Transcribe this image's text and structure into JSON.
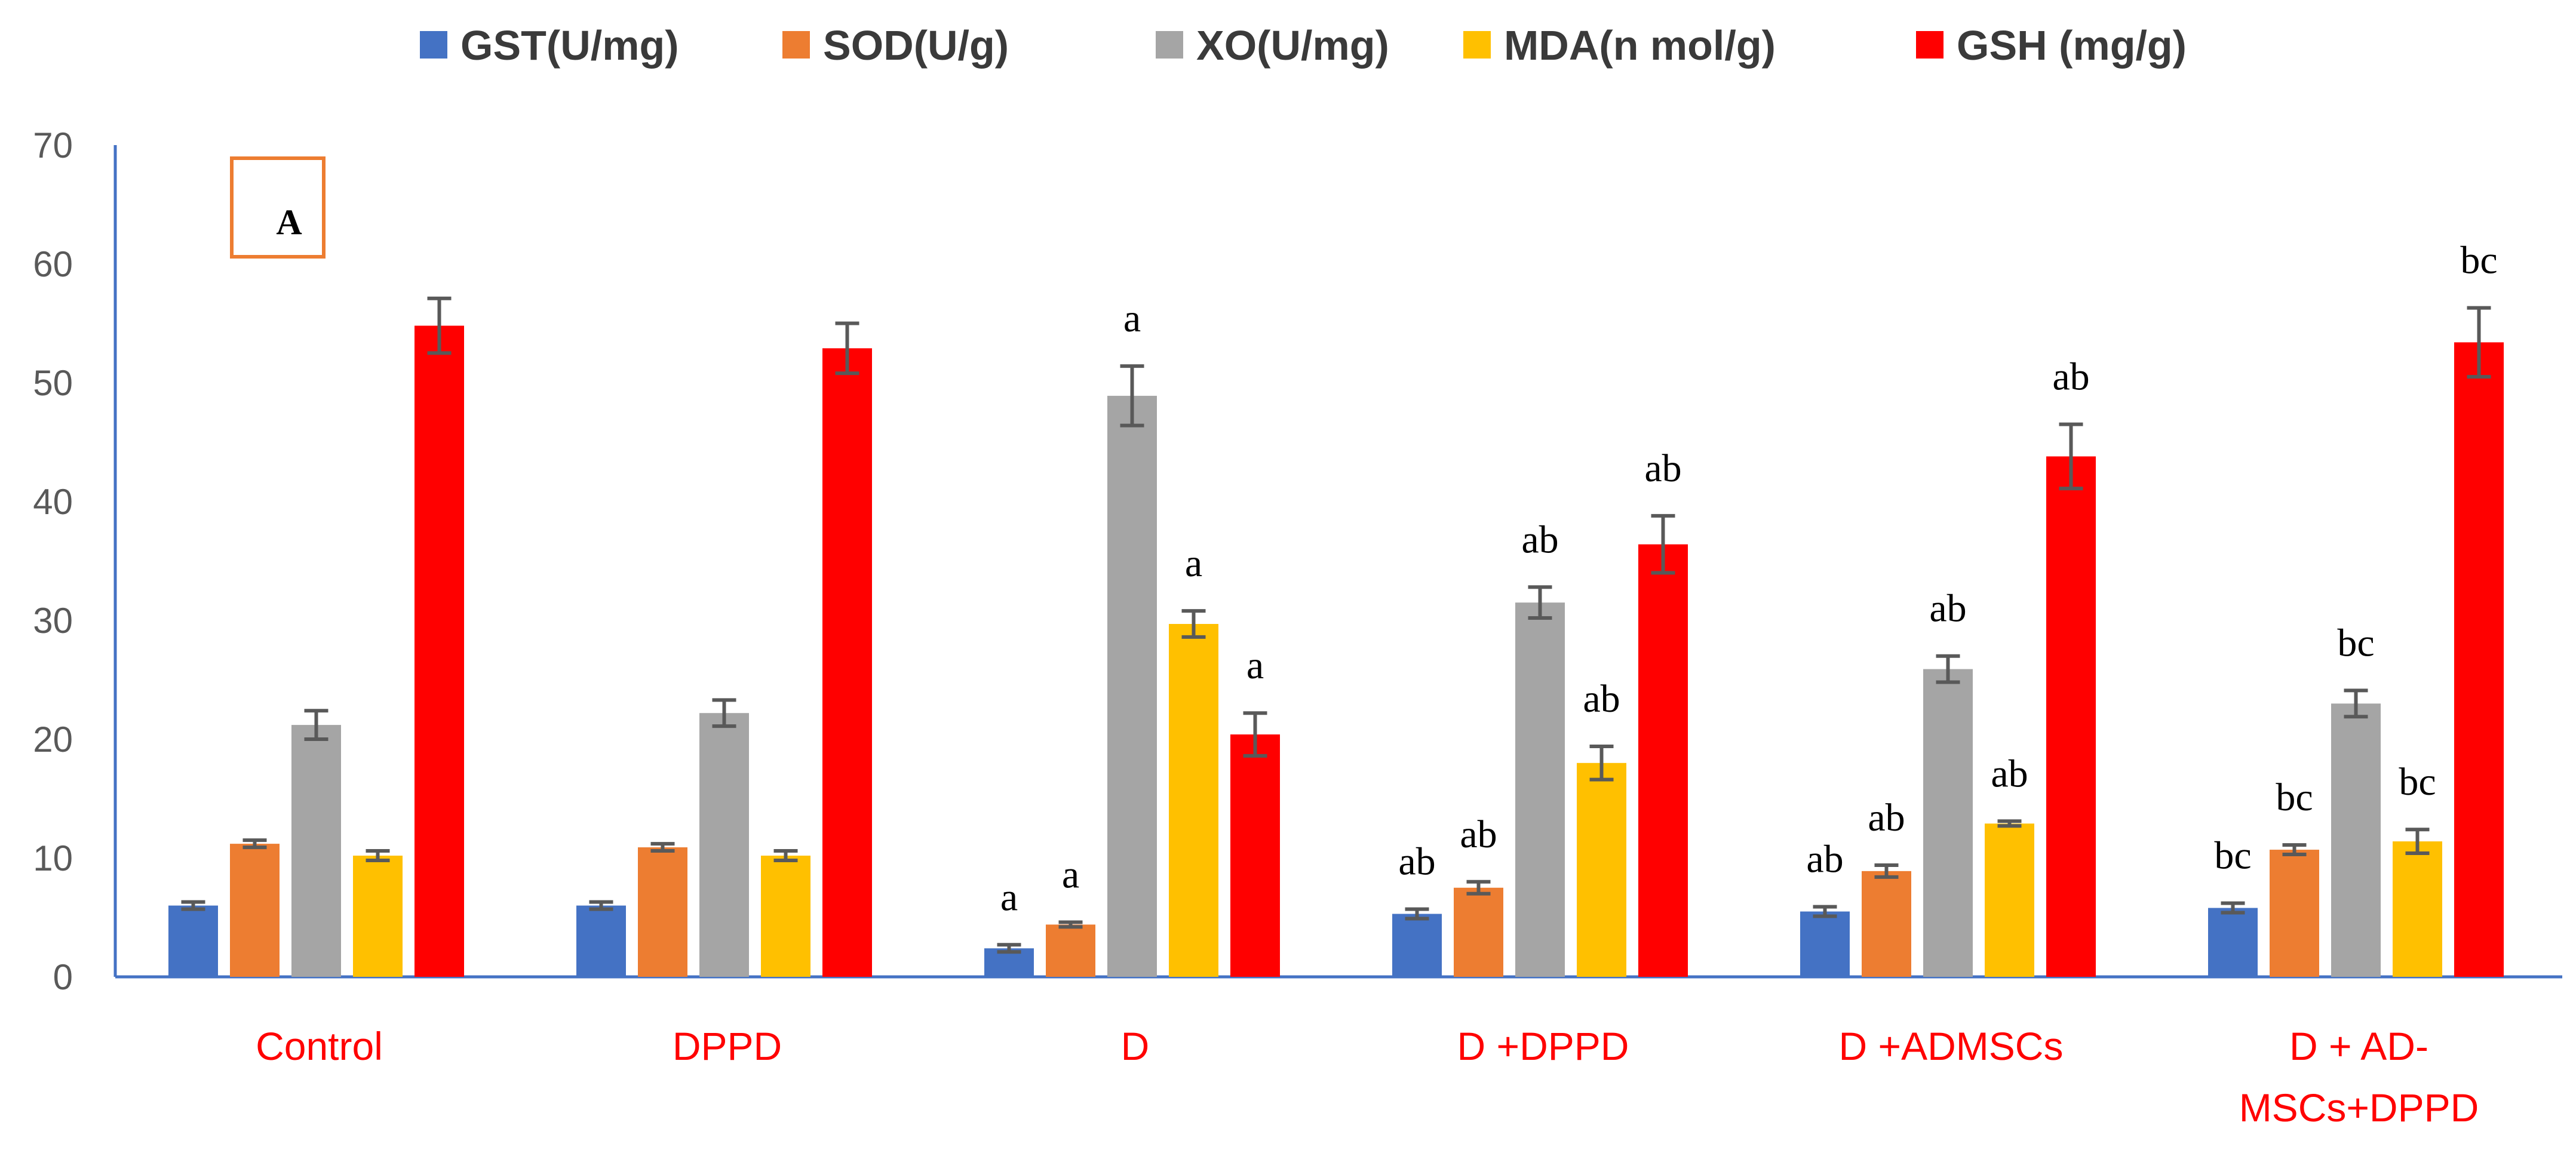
{
  "colors": {
    "GST": "#4472C4",
    "SOD": "#ED7D31",
    "XO": "#A5A5A5",
    "MDA": "#FFC000",
    "GSH": "#FF0000",
    "axis": "#4472C4",
    "category_label": "#FF0000",
    "error_bar": "#595959",
    "panel_box": "#ED7D31"
  },
  "chart_data": {
    "type": "bar",
    "title": "",
    "panel_label": "A",
    "xlabel": "",
    "ylabel": "",
    "ylim": [
      0,
      70
    ],
    "yticks": [
      0,
      10,
      20,
      30,
      40,
      50,
      60,
      70
    ],
    "grid": false,
    "legend_position": "top",
    "categories": [
      [
        "Control"
      ],
      [
        "DPPD"
      ],
      [
        "D"
      ],
      [
        "D +DPPD"
      ],
      [
        "D +ADMSCs"
      ],
      [
        "D + AD-",
        "MSCs+DPPD"
      ]
    ],
    "series": [
      {
        "key": "GST",
        "name": "GST(U/mg)",
        "values": [
          6.0,
          6.0,
          2.4,
          5.3,
          5.5,
          5.8
        ],
        "errors": [
          0.3,
          0.3,
          0.3,
          0.4,
          0.4,
          0.4
        ],
        "labels": [
          "",
          "",
          "a",
          "ab",
          "ab",
          "bc"
        ]
      },
      {
        "key": "SOD",
        "name": "SOD(U/g)",
        "values": [
          11.2,
          10.9,
          4.4,
          7.5,
          8.9,
          10.7
        ],
        "errors": [
          0.3,
          0.3,
          0.2,
          0.5,
          0.5,
          0.4
        ],
        "labels": [
          "",
          "",
          "a",
          "ab",
          "ab",
          "bc"
        ]
      },
      {
        "key": "XO",
        "name": "XO(U/mg)",
        "values": [
          21.2,
          22.2,
          48.9,
          31.5,
          25.9,
          23.0
        ],
        "errors": [
          1.2,
          1.1,
          2.5,
          1.3,
          1.1,
          1.1
        ],
        "labels": [
          "",
          "",
          "a",
          "ab",
          "ab",
          "bc"
        ]
      },
      {
        "key": "MDA",
        "name": "MDA(n mol/g)",
        "values": [
          10.2,
          10.2,
          29.7,
          18.0,
          12.9,
          11.4
        ],
        "errors": [
          0.4,
          0.4,
          1.1,
          1.4,
          0.2,
          1.0
        ],
        "labels": [
          "",
          "",
          "a",
          "ab",
          "ab",
          "bc"
        ]
      },
      {
        "key": "GSH",
        "name": "GSH (mg/g)",
        "values": [
          54.8,
          52.9,
          20.4,
          36.4,
          43.8,
          53.4
        ],
        "errors": [
          2.3,
          2.1,
          1.8,
          2.4,
          2.7,
          2.9
        ],
        "labels": [
          "",
          "",
          "a",
          "ab",
          "ab",
          "bc"
        ]
      }
    ]
  }
}
